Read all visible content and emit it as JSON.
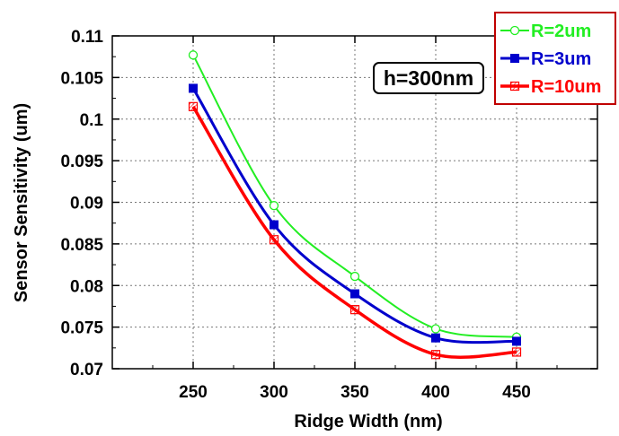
{
  "chart_data": {
    "type": "line",
    "title": "",
    "xlabel": "Ridge Width (nm)",
    "ylabel": "Sensor Sensitivity (um)",
    "xlim": [
      200,
      500
    ],
    "ylim": [
      0.07,
      0.11
    ],
    "x_ticks": [
      "250",
      "300",
      "350",
      "400",
      "450"
    ],
    "y_ticks": [
      "0.07",
      "0.075",
      "0.08",
      "0.085",
      "0.09",
      "0.095",
      "0.1",
      "0.105",
      "0.11"
    ],
    "grid": true,
    "legend_position": "top-right",
    "annotation": "h=300nm",
    "x": [
      250,
      300,
      350,
      400,
      450
    ],
    "series": [
      {
        "name": "R=2um",
        "color": "#22ee22",
        "marker": "open-circle",
        "values": [
          0.1077,
          0.0896,
          0.0811,
          0.0748,
          0.0738
        ]
      },
      {
        "name": "R=3um",
        "color": "#0000cc",
        "marker": "filled-square",
        "values": [
          0.1037,
          0.0873,
          0.079,
          0.0737,
          0.0733
        ]
      },
      {
        "name": "R=10um",
        "color": "#ff0000",
        "marker": "hatched-square",
        "values": [
          0.1015,
          0.0855,
          0.0771,
          0.0717,
          0.072
        ]
      }
    ]
  }
}
